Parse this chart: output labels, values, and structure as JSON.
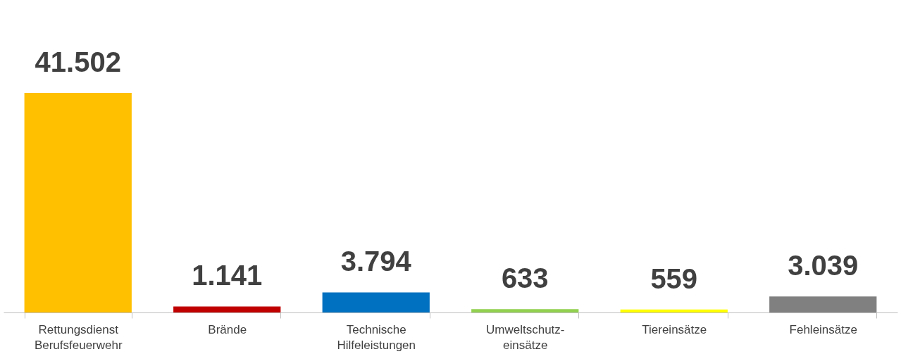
{
  "chart_data": {
    "type": "bar",
    "categories": [
      "Rettungsdienst\nBerufsfeuerwehr",
      "Brände",
      "Technische\nHilfeleistungen",
      "Umweltschutz-\neinsätze",
      "Tiereinsätze",
      "Fehleinsätze"
    ],
    "values": [
      41502,
      1141,
      3794,
      633,
      559,
      3039
    ],
    "colors": [
      "#ffc000",
      "#c00000",
      "#0070c0",
      "#92d050",
      "#ffff00",
      "#808080"
    ],
    "value_labels": [
      "41.502",
      "1.141",
      "3.794",
      "633",
      "559",
      "3.039"
    ],
    "grid": false
  }
}
